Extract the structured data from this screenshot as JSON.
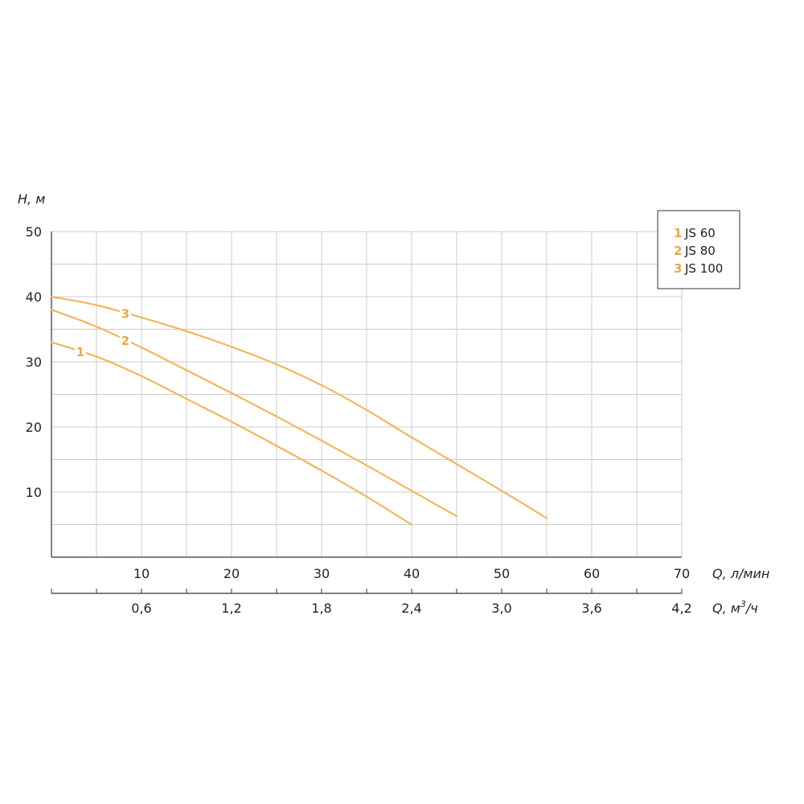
{
  "chart_data": {
    "type": "line",
    "title": "",
    "ylabel": "H, м",
    "xlabel": "Q, л/мин",
    "x2label": "Q, м³/ч",
    "x2label_base": "Q, м",
    "x2label_sup": "3",
    "x2label_tail": "/ч",
    "xlim": [
      0,
      70
    ],
    "ylim": [
      0,
      50
    ],
    "x_ticks": [
      "10",
      "20",
      "30",
      "40",
      "50",
      "60",
      "70"
    ],
    "x2_ticks": [
      "0,6",
      "1,2",
      "1,8",
      "2,4",
      "3,0",
      "3,6",
      "4,2"
    ],
    "y_ticks": [
      "10",
      "20",
      "30",
      "40",
      "50"
    ],
    "grid": true,
    "legend_position": "top-right",
    "colors": {
      "curve": "#f0b760",
      "label": "#e8a84a",
      "grid": "#cccccc",
      "axis": "#333333"
    },
    "series": [
      {
        "name": "JS 60",
        "number": "1",
        "x": [
          0,
          5,
          10,
          15,
          20,
          25,
          30,
          35,
          40
        ],
        "y": [
          33,
          30.8,
          27.8,
          24.3,
          20.8,
          17.1,
          13.3,
          9.3,
          5
        ]
      },
      {
        "name": "JS 80",
        "number": "2",
        "x": [
          0,
          5,
          10,
          15,
          20,
          25,
          30,
          35,
          40,
          45
        ],
        "y": [
          38,
          35.4,
          32.2,
          28.7,
          25.2,
          21.6,
          17.9,
          14.1,
          10.2,
          6.3
        ]
      },
      {
        "name": "JS 100",
        "number": "3",
        "x": [
          0,
          5,
          10,
          15,
          20,
          25,
          30,
          35,
          40,
          45,
          50,
          55
        ],
        "y": [
          40,
          38.7,
          36.8,
          34.7,
          32.3,
          29.6,
          26.4,
          22.6,
          18.4,
          14.3,
          10.2,
          6
        ]
      }
    ]
  }
}
